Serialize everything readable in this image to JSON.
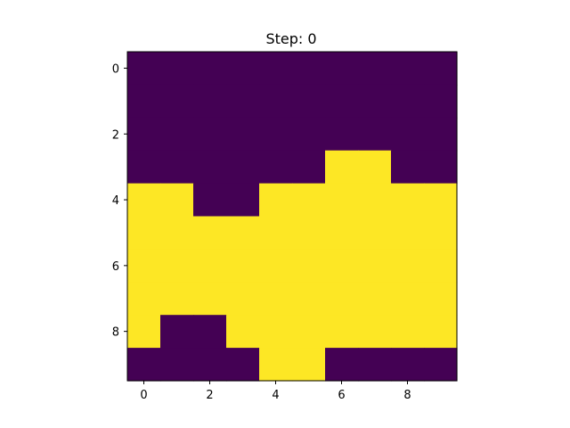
{
  "chart_data": {
    "type": "heatmap",
    "title": "Step: 0",
    "xlabel": "",
    "ylabel": "",
    "x_ticks": [
      0,
      2,
      4,
      6,
      8
    ],
    "y_ticks": [
      0,
      2,
      4,
      6,
      8
    ],
    "xlim": [
      -0.5,
      9.5
    ],
    "ylim": [
      9.5,
      -0.5
    ],
    "grid": false,
    "colormap": {
      "0": "#440154",
      "1": "#fde725"
    },
    "rows": 10,
    "cols": 10,
    "matrix": [
      [
        0,
        0,
        0,
        0,
        0,
        0,
        0,
        0,
        0,
        0
      ],
      [
        0,
        0,
        0,
        0,
        0,
        0,
        0,
        0,
        0,
        0
      ],
      [
        0,
        0,
        0,
        0,
        0,
        0,
        0,
        0,
        0,
        0
      ],
      [
        0,
        0,
        0,
        0,
        0,
        0,
        1,
        1,
        0,
        0
      ],
      [
        1,
        1,
        0,
        0,
        1,
        1,
        1,
        1,
        1,
        1
      ],
      [
        1,
        1,
        1,
        1,
        1,
        1,
        1,
        1,
        1,
        1
      ],
      [
        1,
        1,
        1,
        1,
        1,
        1,
        1,
        1,
        1,
        1
      ],
      [
        1,
        1,
        1,
        1,
        1,
        1,
        1,
        1,
        1,
        1
      ],
      [
        1,
        0,
        0,
        1,
        1,
        1,
        1,
        1,
        1,
        1
      ],
      [
        0,
        0,
        0,
        0,
        1,
        1,
        0,
        0,
        0,
        0
      ]
    ]
  }
}
